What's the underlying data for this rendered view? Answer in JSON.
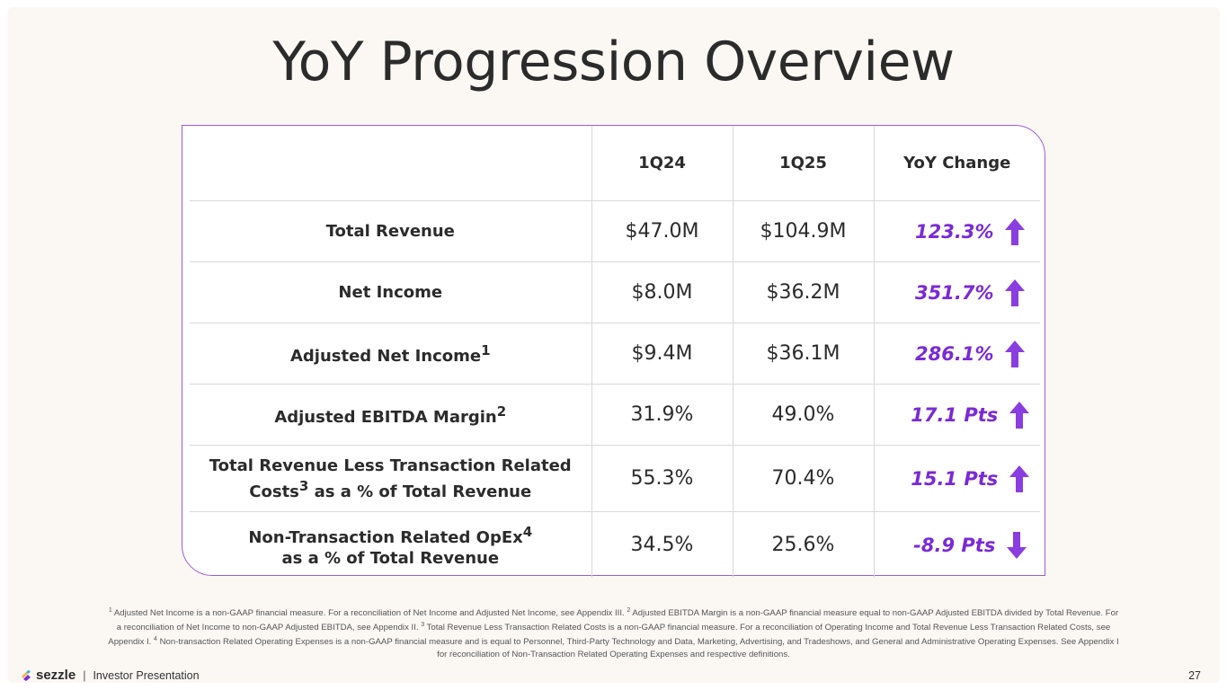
{
  "title": "YoY Progression Overview",
  "table": {
    "headers": [
      "",
      "1Q24",
      "1Q25",
      "YoY Change"
    ],
    "rows": [
      {
        "label": "Total Revenue",
        "label_sup": "",
        "label_line2": "",
        "q1": "$47.0M",
        "q2": "$104.9M",
        "change": "123.3%",
        "direction": "up"
      },
      {
        "label": "Net Income",
        "label_sup": "",
        "label_line2": "",
        "q1": "$8.0M",
        "q2": "$36.2M",
        "change": "351.7%",
        "direction": "up"
      },
      {
        "label": "Adjusted Net Income",
        "label_sup": "1",
        "label_line2": "",
        "q1": "$9.4M",
        "q2": "$36.1M",
        "change": "286.1%",
        "direction": "up"
      },
      {
        "label": "Adjusted EBITDA Margin",
        "label_sup": "2",
        "label_line2": "",
        "q1": "31.9%",
        "q2": "49.0%",
        "change": "17.1 Pts",
        "direction": "up"
      },
      {
        "label": "Total Revenue Less Transaction Related Costs",
        "label_sup": "3",
        "label_line2": " as a % of Total Revenue",
        "q1": "55.3%",
        "q2": "70.4%",
        "change": "15.1 Pts",
        "direction": "up"
      },
      {
        "label": "Non-Transaction Related OpEx",
        "label_sup": "4",
        "label_line2": "as a % of Total Revenue",
        "q1": "34.5%",
        "q2": "25.6%",
        "change": "-8.9 Pts",
        "direction": "down"
      }
    ]
  },
  "footnotes": [
    {
      "num": "1",
      "text": "Adjusted Net Income is a non-GAAP financial measure. For a reconciliation of Net Income and Adjusted Net Income, see Appendix III."
    },
    {
      "num": "2",
      "text": "Adjusted EBITDA Margin is a non-GAAP financial measure equal to non-GAAP Adjusted EBITDA divided by Total Revenue. For a reconciliation of Net Income to non-GAAP Adjusted EBITDA, see Appendix II."
    },
    {
      "num": "3",
      "text": "Total Revenue Less Transaction Related Costs is a non-GAAP financial measure. For a reconciliation of Operating Income and Total Revenue Less Transaction Related Costs, see Appendix I."
    },
    {
      "num": "4",
      "text": "Non-transaction Related Operating Expenses is a non-GAAP financial measure and is equal to Personnel, Third-Party Technology and Data, Marketing, Advertising, and Tradeshows, and General and Administrative Operating Expenses. See Appendix I for reconciliation of Non-Transaction Related Operating Expenses and respective definitions."
    }
  ],
  "footer": {
    "brand": "sezzle",
    "separator": "|",
    "subtitle": "Investor Presentation",
    "page_number": "27"
  },
  "colors": {
    "accent": "#7a2ad6",
    "border": "#9a5cd6",
    "text": "#2b2b2b"
  }
}
